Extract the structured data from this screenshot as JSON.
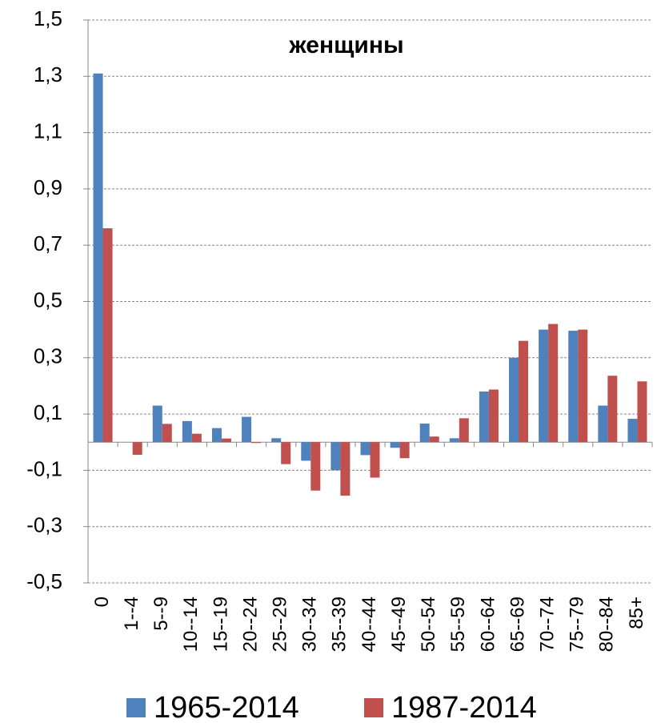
{
  "chart_data": {
    "type": "bar",
    "title": "женщины",
    "categories": [
      "0",
      "1--4",
      "5--9",
      "10--14",
      "15--19",
      "20--24",
      "25--29",
      "30--34",
      "35--39",
      "40--44",
      "45--49",
      "50--54",
      "55--59",
      "60--64",
      "65--69",
      "70--74",
      "75--79",
      "80--84",
      "85+"
    ],
    "series": [
      {
        "name": "1965-2014",
        "color": "#4f81bd",
        "values": [
          1.31,
          0,
          0.13,
          0.075,
          0.05,
          0.09,
          0.014,
          -0.066,
          -0.1,
          -0.046,
          -0.02,
          0.066,
          0.014,
          0.18,
          0.3,
          0.4,
          0.396,
          0.13,
          0.083
        ]
      },
      {
        "name": "1987-2014",
        "color": "#c0504d",
        "values": [
          0.76,
          -0.045,
          0.065,
          0.03,
          0.013,
          -0.003,
          -0.078,
          -0.172,
          -0.19,
          -0.126,
          -0.057,
          0.02,
          0.085,
          0.187,
          0.36,
          0.42,
          0.4,
          0.236,
          0.216
        ]
      }
    ],
    "ylim": [
      -0.5,
      1.5
    ],
    "yticks": [
      {
        "value": -0.5,
        "label": "-0,5"
      },
      {
        "value": -0.3,
        "label": "-0,3"
      },
      {
        "value": -0.1,
        "label": "-0,1"
      },
      {
        "value": 0.1,
        "label": "0,1"
      },
      {
        "value": 0.3,
        "label": "0,3"
      },
      {
        "value": 0.5,
        "label": "0,5"
      },
      {
        "value": 0.7,
        "label": "0,7"
      },
      {
        "value": 0.9,
        "label": "0,9"
      },
      {
        "value": 1.1,
        "label": "1,1"
      },
      {
        "value": 1.3,
        "label": "1,3"
      },
      {
        "value": 1.5,
        "label": "1,5"
      }
    ],
    "grid": true,
    "legend": "bottom"
  }
}
